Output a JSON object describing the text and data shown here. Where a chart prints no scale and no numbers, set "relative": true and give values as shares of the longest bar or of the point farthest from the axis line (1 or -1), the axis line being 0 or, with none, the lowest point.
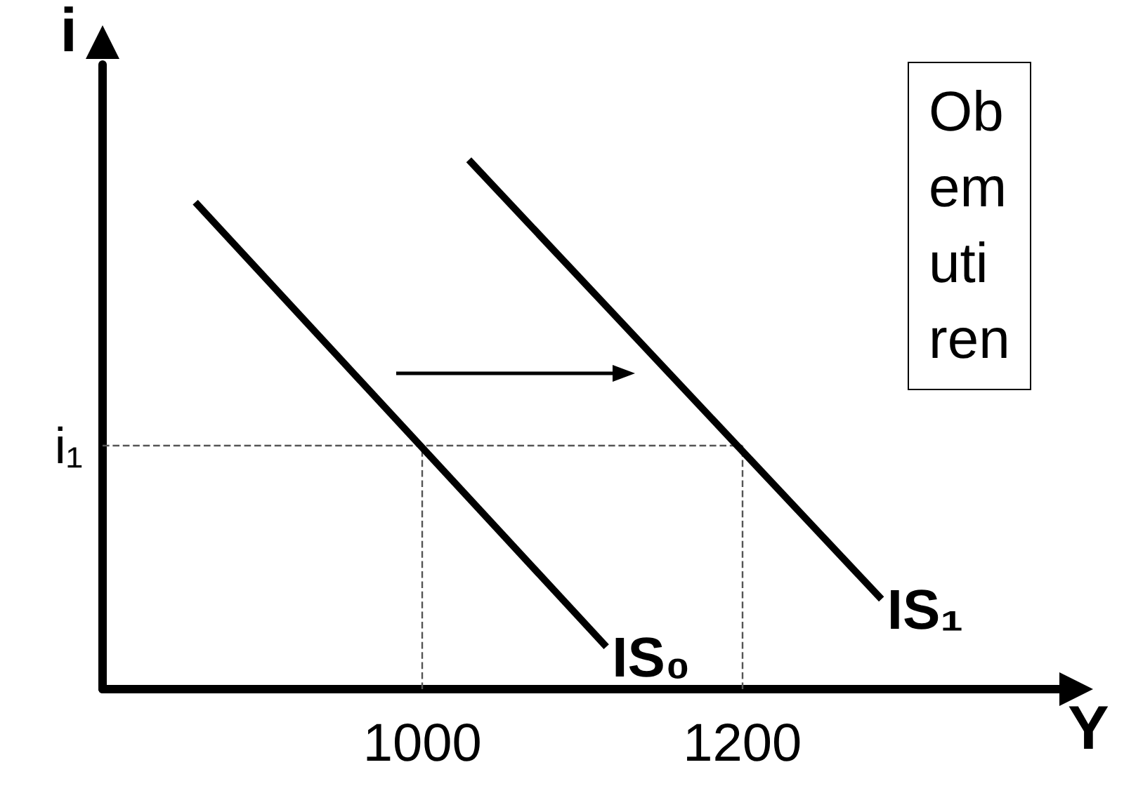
{
  "chart_data": {
    "type": "line",
    "relative": true,
    "xlabel": "Y",
    "ylabel": "i",
    "xlim": [
      800,
      1400
    ],
    "xticks": [
      1000,
      1200
    ],
    "grid": false,
    "legend": false,
    "marker": "none",
    "line_style": "solid",
    "series": [
      {
        "name": "IS₀",
        "color": "#000000",
        "x": [
          858,
          1115
        ],
        "values": [
          0.92,
          0.08
        ]
      },
      {
        "name": "IS₁",
        "color": "#000000",
        "x": [
          1029,
          1287
        ],
        "values": [
          1,
          0.17
        ]
      }
    ],
    "ref_lines": [
      {
        "axis": "y",
        "value": 0.46,
        "label": "i₁",
        "line_style": "dashed",
        "color": "#555555"
      },
      {
        "axis": "x",
        "value": 1000,
        "line_style": "dashed",
        "color": "#555555"
      },
      {
        "axis": "x",
        "value": 1200,
        "line_style": "dashed",
        "color": "#555555"
      }
    ],
    "annotations": [
      "Ob\nem\nuti\nren"
    ]
  }
}
